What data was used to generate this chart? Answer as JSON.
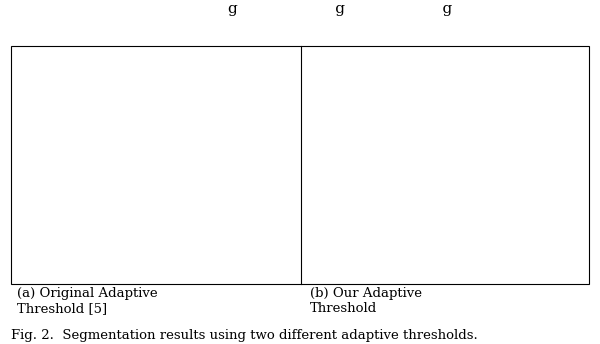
{
  "fig_caption": "Fig. 2.  Segmentation results using two different adaptive thresholds.",
  "sub_caption_a": "(a) Original Adaptive\nThreshold [5]",
  "sub_caption_b": "(b) Our Adaptive\nThreshold",
  "bg_color": "#ffffff",
  "image_bg": "#000000",
  "text_color": "#000000",
  "font_size": 9.5,
  "caption_font_size": 9.5,
  "top_partial_text": "g                    g                    g"
}
